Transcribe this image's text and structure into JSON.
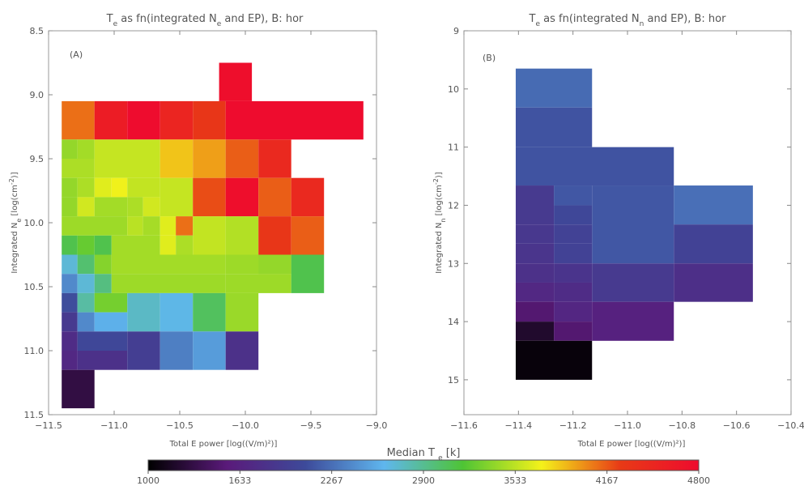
{
  "colorbar": {
    "title": "Median T",
    "title_sub": "e",
    "title_unit": "[k]",
    "min": 1000,
    "max": 4800,
    "tick_labels": [
      "1000",
      "1633",
      "2267",
      "2900",
      "3533",
      "4167",
      "4800"
    ],
    "tick_values": [
      1000,
      1633.3,
      2266.7,
      2900,
      3533.3,
      4166.7,
      4800
    ],
    "colormap_stops": [
      "#000000",
      "#5a1a7a",
      "#3d4a9a",
      "#5fb6ee",
      "#4ec435",
      "#f4f21a",
      "#e83a16",
      "#ee0b2e"
    ]
  },
  "chart_data": [
    {
      "type": "heatmap",
      "title_parts": [
        "T",
        "e",
        " as fn(integrated N",
        "e",
        " and EP), B: hor"
      ],
      "panel_label": "(A)",
      "xlabel": "Total E power [log((V/m)²)]",
      "ylabel_parts": [
        "Integrated N",
        "e",
        " [log(cm",
        "-2",
        ")]"
      ],
      "xlim": [
        -11.5,
        -9.0
      ],
      "ylim": [
        8.5,
        11.5
      ],
      "y_inverted": true,
      "x_ticks": [
        -11.5,
        -11.0,
        -10.5,
        -10.0,
        -9.5,
        -9.0
      ],
      "x_tick_labels": [
        "−11.5",
        "−11.0",
        "−10.5",
        "−10.0",
        "−9.5",
        "−9.0"
      ],
      "y_ticks": [
        8.5,
        9.0,
        9.5,
        10.0,
        10.5,
        11.0,
        11.5
      ],
      "y_tick_labels": [
        "8.5",
        "9.0",
        "9.5",
        "10.0",
        "10.5",
        "11.0",
        "11.5"
      ],
      "cells": [
        [
          -10.2,
          -9.95,
          8.75,
          9.05,
          4760
        ],
        [
          -11.4,
          -11.15,
          9.05,
          9.35,
          4100
        ],
        [
          -11.15,
          -10.9,
          9.05,
          9.35,
          4600
        ],
        [
          -10.9,
          -10.65,
          9.05,
          9.35,
          4790
        ],
        [
          -10.65,
          -10.4,
          9.05,
          9.35,
          4500
        ],
        [
          -10.4,
          -10.15,
          9.05,
          9.35,
          4300
        ],
        [
          -10.15,
          -9.1,
          9.05,
          9.35,
          4790
        ],
        [
          -11.4,
          -11.28,
          9.35,
          9.5,
          3400
        ],
        [
          -11.28,
          -11.15,
          9.35,
          9.5,
          3450
        ],
        [
          -11.4,
          -11.15,
          9.5,
          9.65,
          3480
        ],
        [
          -11.15,
          -10.65,
          9.35,
          9.65,
          3560
        ],
        [
          -10.65,
          -10.4,
          9.35,
          9.65,
          3850
        ],
        [
          -10.4,
          -10.15,
          9.35,
          9.65,
          3960
        ],
        [
          -10.15,
          -9.9,
          9.35,
          9.65,
          4150
        ],
        [
          -9.9,
          -9.65,
          9.35,
          9.65,
          4450
        ],
        [
          -11.4,
          -11.28,
          9.65,
          9.8,
          3400
        ],
        [
          -11.28,
          -11.15,
          9.65,
          9.8,
          3480
        ],
        [
          -11.15,
          -11.02,
          9.65,
          9.8,
          3650
        ],
        [
          -11.02,
          -10.9,
          9.65,
          9.8,
          3700
        ],
        [
          -10.9,
          -10.65,
          9.65,
          9.8,
          3550
        ],
        [
          -11.4,
          -11.28,
          9.8,
          9.95,
          3400
        ],
        [
          -11.28,
          -11.15,
          9.8,
          9.95,
          3600
        ],
        [
          -11.15,
          -10.9,
          9.8,
          9.95,
          3450
        ],
        [
          -10.9,
          -10.78,
          9.8,
          9.95,
          3480
        ],
        [
          -10.78,
          -10.65,
          9.8,
          9.95,
          3600
        ],
        [
          -10.65,
          -10.4,
          9.65,
          9.95,
          3560
        ],
        [
          -10.4,
          -10.15,
          9.65,
          9.95,
          4200
        ],
        [
          -10.15,
          -9.9,
          9.65,
          9.95,
          4760
        ],
        [
          -9.9,
          -9.65,
          9.65,
          9.95,
          4150
        ],
        [
          -9.65,
          -9.4,
          9.65,
          9.95,
          4450
        ],
        [
          -11.4,
          -10.9,
          9.95,
          10.1,
          3430
        ],
        [
          -10.9,
          -10.78,
          9.95,
          10.1,
          3520
        ],
        [
          -10.78,
          -10.65,
          9.95,
          10.1,
          3460
        ],
        [
          -10.65,
          -10.53,
          9.95,
          10.1,
          3650
        ],
        [
          -10.53,
          -10.4,
          9.95,
          10.1,
          4100
        ],
        [
          -10.4,
          -10.15,
          9.95,
          10.25,
          3550
        ],
        [
          -10.15,
          -9.9,
          9.95,
          10.25,
          3500
        ],
        [
          -9.9,
          -9.65,
          9.95,
          10.25,
          4300
        ],
        [
          -9.65,
          -9.4,
          9.95,
          10.25,
          4150
        ],
        [
          -11.4,
          -11.28,
          10.1,
          10.25,
          3100
        ],
        [
          -11.28,
          -11.15,
          10.1,
          10.25,
          3250
        ],
        [
          -11.15,
          -11.02,
          10.1,
          10.25,
          3100
        ],
        [
          -11.02,
          -10.65,
          10.1,
          10.25,
          3450
        ],
        [
          -10.65,
          -10.53,
          10.1,
          10.25,
          3650
        ],
        [
          -10.53,
          -10.4,
          10.1,
          10.25,
          3480
        ],
        [
          -11.4,
          -11.28,
          10.25,
          10.4,
          2700
        ],
        [
          -11.28,
          -11.15,
          10.25,
          10.4,
          3000
        ],
        [
          -11.15,
          -11.02,
          10.25,
          10.4,
          3350
        ],
        [
          -11.02,
          -10.15,
          10.25,
          10.4,
          3450
        ],
        [
          -10.15,
          -9.65,
          10.25,
          10.4,
          3430
        ],
        [
          -9.65,
          -9.9,
          10.25,
          10.4,
          3400
        ],
        [
          -11.4,
          -11.28,
          10.4,
          10.55,
          2400
        ],
        [
          -11.28,
          -11.15,
          10.4,
          10.55,
          2700
        ],
        [
          -11.15,
          -11.02,
          10.4,
          10.55,
          2950
        ],
        [
          -11.02,
          -10.15,
          10.4,
          10.55,
          3430
        ],
        [
          -10.15,
          -9.65,
          10.4,
          10.55,
          3430
        ],
        [
          -9.65,
          -9.4,
          10.25,
          10.55,
          3100
        ],
        [
          -11.4,
          -11.28,
          10.55,
          10.7,
          2100
        ],
        [
          -11.28,
          -11.15,
          10.55,
          10.7,
          2850
        ],
        [
          -11.15,
          -10.9,
          10.55,
          10.7,
          3300
        ],
        [
          -10.9,
          -10.65,
          10.55,
          10.85,
          2750
        ],
        [
          -10.65,
          -10.4,
          10.55,
          10.85,
          2650
        ],
        [
          -10.4,
          -10.15,
          10.55,
          10.85,
          3050
        ],
        [
          -10.15,
          -9.9,
          10.55,
          10.85,
          3420
        ],
        [
          -11.4,
          -11.28,
          10.7,
          10.85,
          1900
        ],
        [
          -11.28,
          -11.15,
          10.7,
          10.85,
          2400
        ],
        [
          -11.15,
          -10.9,
          10.7,
          10.85,
          2600
        ],
        [
          -11.4,
          -11.28,
          10.85,
          11.0,
          1750
        ],
        [
          -11.28,
          -10.9,
          10.85,
          11.0,
          2050
        ],
        [
          -11.4,
          -11.28,
          11.0,
          11.15,
          1700
        ],
        [
          -11.28,
          -10.9,
          11.0,
          11.15,
          1800
        ],
        [
          -10.9,
          -10.65,
          10.85,
          11.15,
          1950
        ],
        [
          -10.65,
          -10.4,
          10.85,
          11.15,
          2350
        ],
        [
          -10.4,
          -10.15,
          10.85,
          11.15,
          2500
        ],
        [
          -10.15,
          -9.9,
          10.85,
          11.15,
          1800
        ],
        [
          -11.4,
          -11.15,
          11.15,
          11.45,
          1300
        ]
      ]
    },
    {
      "type": "heatmap",
      "title_parts": [
        "T",
        "e",
        " as fn(integrated N",
        "n",
        " and EP), B: hor"
      ],
      "panel_label": "(B)",
      "xlabel": "Total E power [log((V/m)²)]",
      "ylabel_parts": [
        "Integrated N",
        "n",
        " [log(cm",
        "-2",
        ")]"
      ],
      "xlim": [
        -11.6,
        -10.4
      ],
      "ylim": [
        9.0,
        15.6
      ],
      "y_inverted": true,
      "x_ticks": [
        -11.6,
        -11.4,
        -11.2,
        -11.0,
        -10.8,
        -10.6,
        -10.4
      ],
      "x_tick_labels": [
        "−11.6",
        "−11.4",
        "−11.2",
        "−11.0",
        "−10.8",
        "−10.6",
        "−10.4"
      ],
      "y_ticks": [
        9,
        10,
        11,
        12,
        13,
        14,
        15
      ],
      "y_tick_labels": [
        "9",
        "10",
        "11",
        "12",
        "13",
        "14",
        "15"
      ],
      "cells": [
        [
          -11.41,
          -11.13,
          9.65,
          10.32,
          2250
        ],
        [
          -11.41,
          -11.13,
          10.32,
          11.0,
          2130
        ],
        [
          -11.41,
          -10.83,
          11.0,
          11.66,
          2130
        ],
        [
          -11.41,
          -11.27,
          11.66,
          12.33,
          1900
        ],
        [
          -11.27,
          -11.13,
          11.66,
          12.0,
          2150
        ],
        [
          -11.27,
          -11.13,
          12.0,
          12.33,
          2050
        ],
        [
          -11.13,
          -10.83,
          11.66,
          13.0,
          2150
        ],
        [
          -10.83,
          -10.54,
          11.66,
          12.33,
          2270
        ],
        [
          -11.41,
          -11.27,
          12.33,
          12.66,
          1880
        ],
        [
          -11.41,
          -11.27,
          12.66,
          13.0,
          1850
        ],
        [
          -11.27,
          -11.13,
          12.33,
          12.66,
          2000
        ],
        [
          -11.27,
          -11.13,
          12.66,
          13.0,
          2000
        ],
        [
          -10.83,
          -10.54,
          12.33,
          13.0,
          2000
        ],
        [
          -11.41,
          -11.27,
          13.0,
          13.33,
          1800
        ],
        [
          -11.41,
          -11.27,
          13.33,
          13.66,
          1700
        ],
        [
          -11.27,
          -11.13,
          13.0,
          13.33,
          1840
        ],
        [
          -11.27,
          -11.13,
          13.33,
          13.66,
          1750
        ],
        [
          -11.13,
          -10.83,
          13.0,
          13.66,
          1900
        ],
        [
          -10.83,
          -10.54,
          13.0,
          13.66,
          1780
        ],
        [
          -11.41,
          -11.27,
          13.66,
          14.0,
          1500
        ],
        [
          -11.27,
          -11.13,
          13.66,
          14.0,
          1680
        ],
        [
          -11.13,
          -10.83,
          13.66,
          14.33,
          1620
        ],
        [
          -11.41,
          -11.27,
          14.0,
          14.33,
          1200
        ],
        [
          -11.27,
          -11.13,
          14.0,
          14.33,
          1500
        ],
        [
          -11.41,
          -11.13,
          14.33,
          15.0,
          1050
        ]
      ]
    }
  ]
}
